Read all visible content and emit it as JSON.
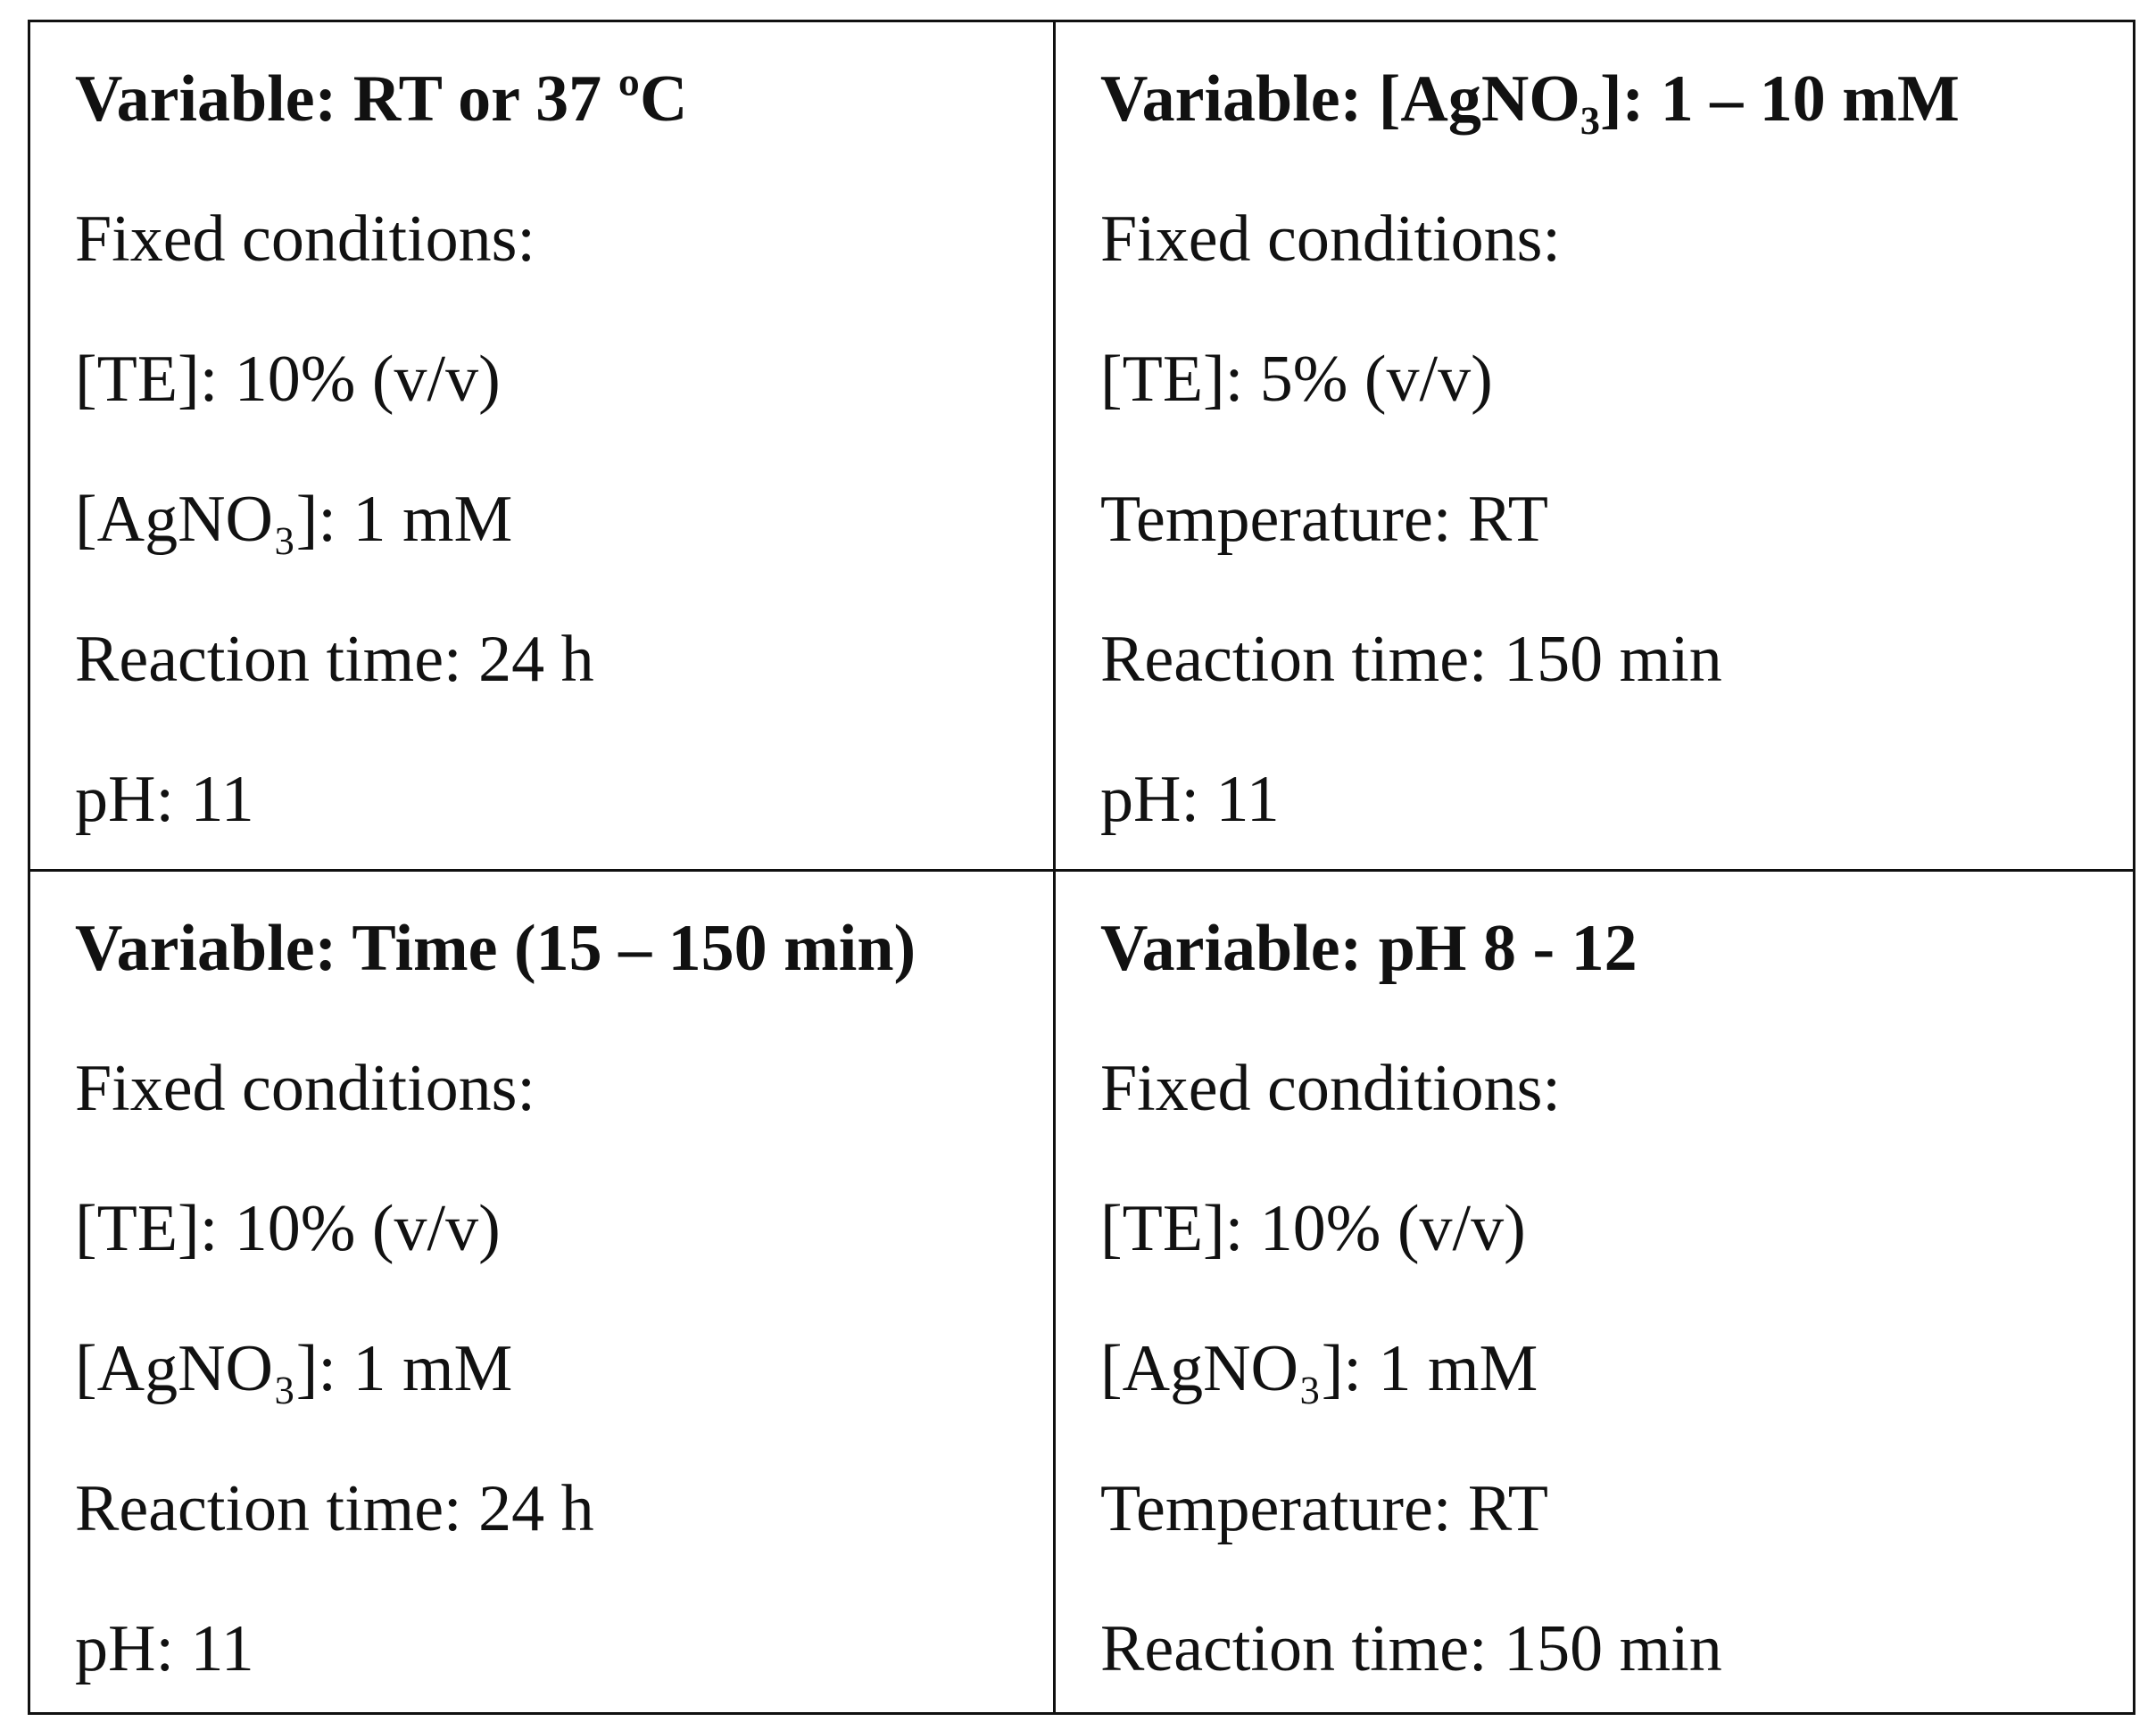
{
  "table": {
    "rows": [
      [
        {
          "heading": "Variable: RT or 37 ºC",
          "lines": [
            "Fixed conditions:",
            "[TE]: 10% (v/v)",
            "[AgNO₃]: 1 mM",
            "Reaction time: 24 h",
            "pH: 11"
          ]
        },
        {
          "heading": "Variable: [AgNO₃]: 1 – 10 mM",
          "lines": [
            "Fixed conditions:",
            "[TE]: 5% (v/v)",
            "Temperature: RT",
            "Reaction time: 150 min",
            "pH: 11"
          ]
        }
      ],
      [
        {
          "heading": "Variable: Time (15 – 150 min)",
          "lines": [
            "Fixed conditions:",
            "[TE]: 10% (v/v)",
            "[AgNO₃]: 1 mM",
            "Reaction time: 24 h",
            "pH: 11"
          ]
        },
        {
          "heading": "Variable: pH 8 - 12",
          "lines": [
            "Fixed conditions:",
            "[TE]: 10% (v/v)",
            "[AgNO₃]: 1 mM",
            "Temperature: RT",
            "Reaction time: 150 min"
          ]
        }
      ]
    ]
  }
}
